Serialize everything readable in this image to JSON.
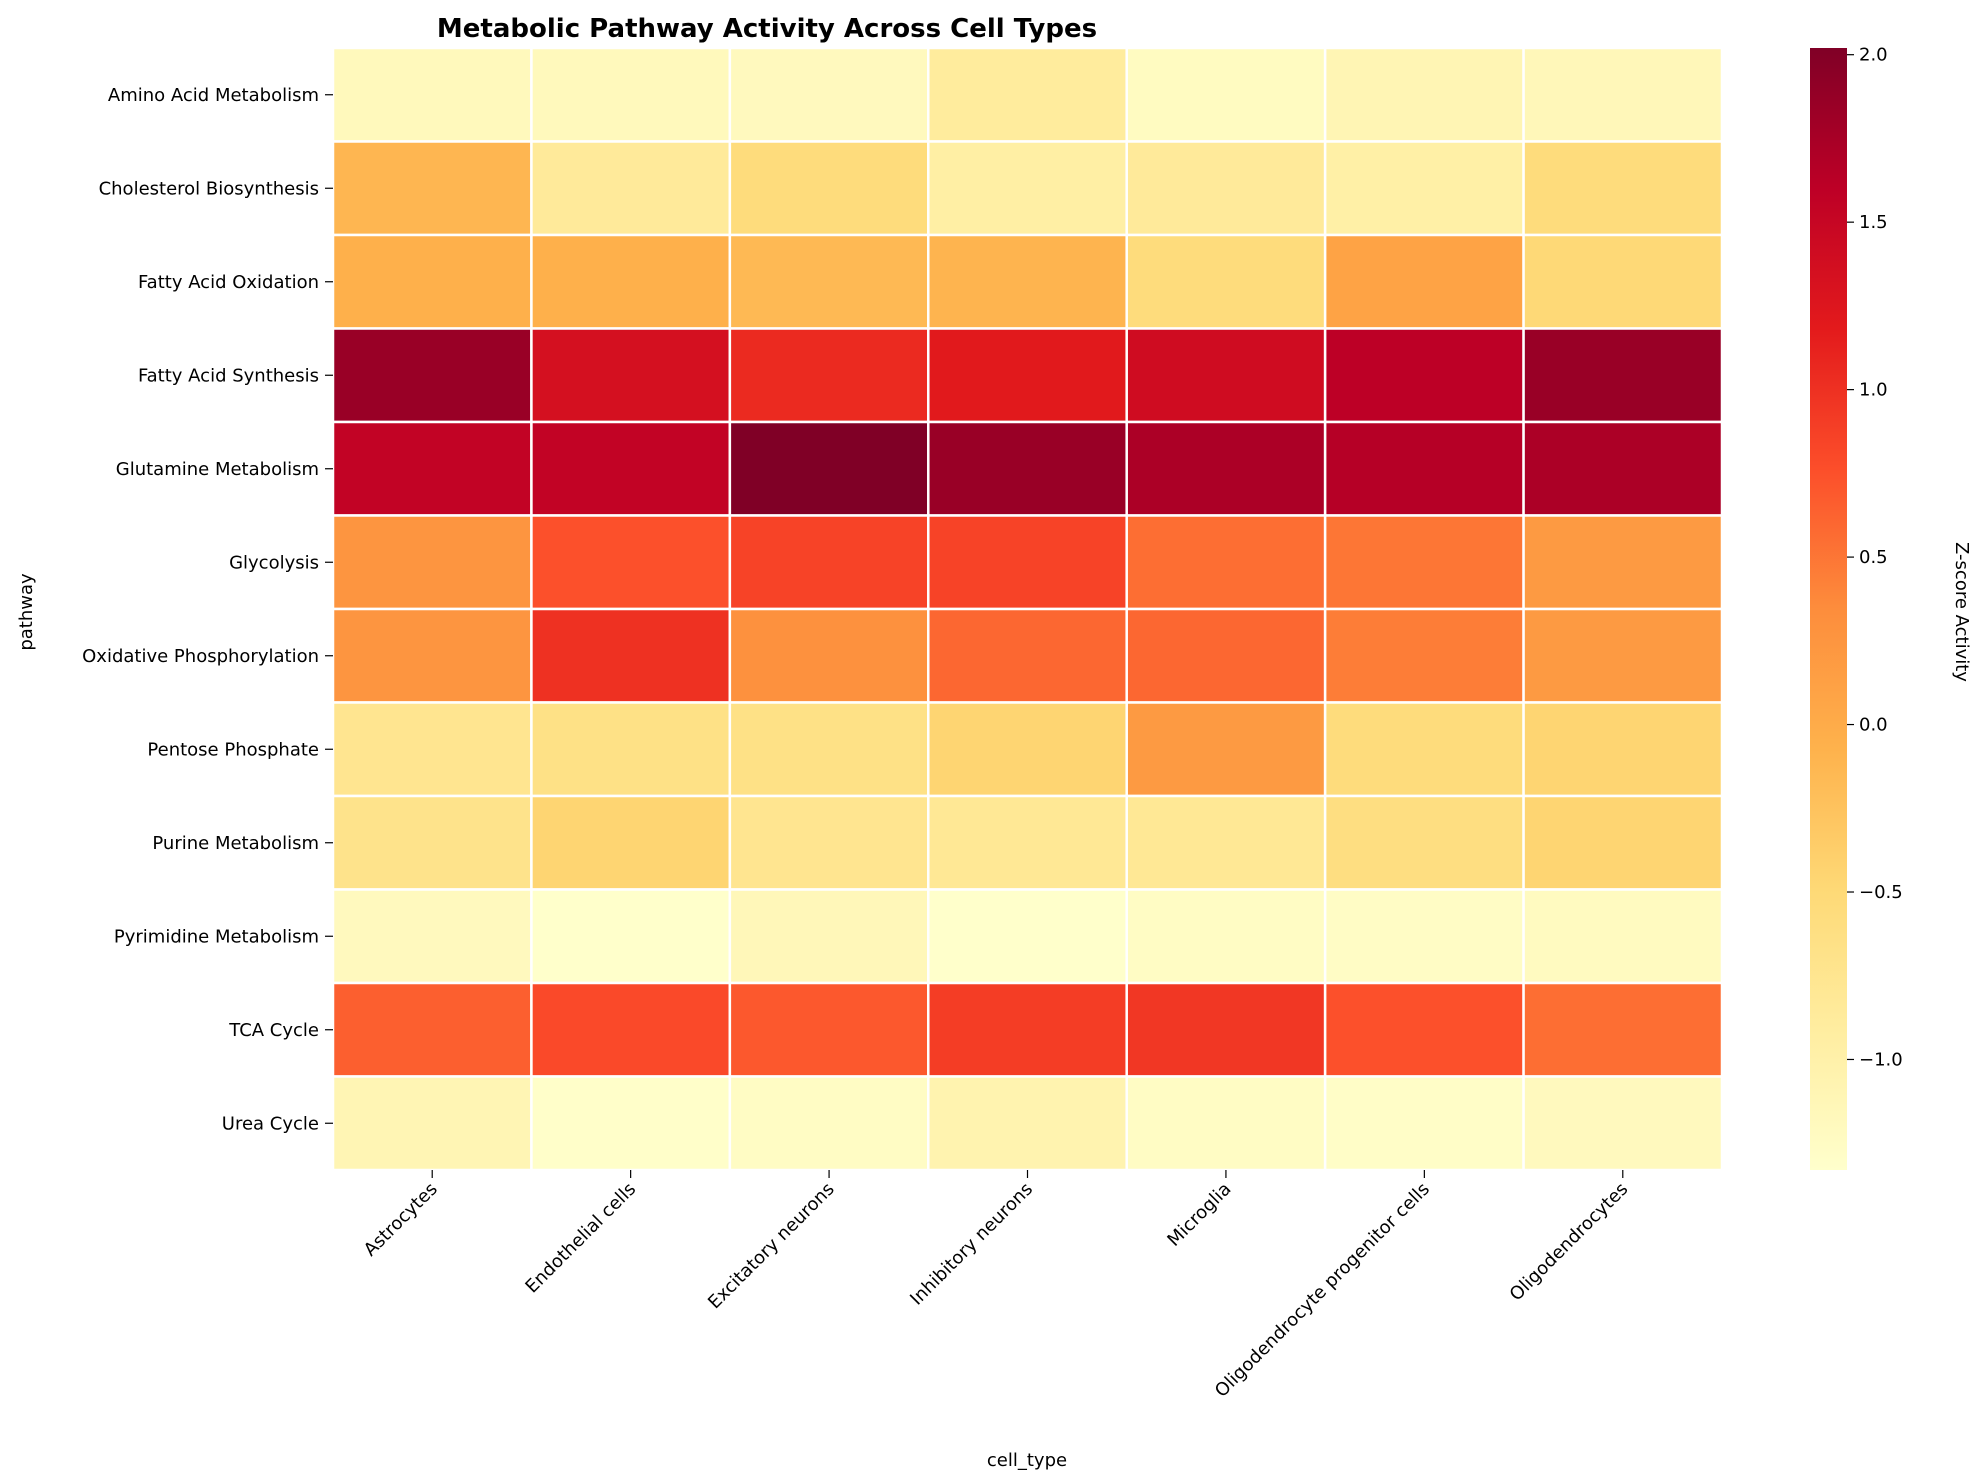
{
  "chart_data": {
    "type": "heatmap",
    "title": "Metabolic Pathway Activity Across Cell Types",
    "xlabel": "cell_type",
    "ylabel": "pathway",
    "colorbar_label": "Z-score Activity",
    "colormap": "YlOrRd",
    "color_range": [
      -1.33,
      2.02
    ],
    "colorbar_ticks": [
      -1.0,
      -0.5,
      0.0,
      0.5,
      1.0,
      1.5,
      2.0
    ],
    "colorbar_tick_labels": [
      "−1.0",
      "−0.5",
      "0.0",
      "0.5",
      "1.0",
      "1.5",
      "2.0"
    ],
    "x_categories": [
      "Astrocytes",
      "Endothelial cells",
      "Excitatory neurons",
      "Inhibitory neurons",
      "Microglia",
      "Oligodendrocyte progenitor cells",
      "Oligodendrocytes"
    ],
    "y_categories": [
      "Amino Acid Metabolism",
      "Cholesterol Biosynthesis",
      "Fatty Acid Oxidation",
      "Fatty Acid Synthesis",
      "Glutamine Metabolism",
      "Glycolysis",
      "Oxidative Phosphorylation",
      "Pentose Phosphate",
      "Purine Metabolism",
      "Pyrimidine Metabolism",
      "TCA Cycle",
      "Urea Cycle"
    ],
    "values": [
      [
        -1.18,
        -1.18,
        -1.2,
        -0.88,
        -1.23,
        -1.1,
        -1.15
      ],
      [
        -0.12,
        -0.85,
        -0.55,
        -0.95,
        -0.85,
        -0.97,
        -0.55
      ],
      [
        -0.05,
        -0.05,
        -0.15,
        -0.1,
        -0.55,
        0.1,
        -0.5
      ],
      [
        1.85,
        1.35,
        1.05,
        1.2,
        1.4,
        1.6,
        1.85
      ],
      [
        1.55,
        1.55,
        2.02,
        1.85,
        1.72,
        1.65,
        1.72
      ],
      [
        0.25,
        0.75,
        0.85,
        0.85,
        0.55,
        0.5,
        0.2
      ],
      [
        0.25,
        1.0,
        0.3,
        0.6,
        0.6,
        0.45,
        0.2
      ],
      [
        -0.75,
        -0.65,
        -0.65,
        -0.45,
        0.2,
        -0.55,
        -0.45
      ],
      [
        -0.7,
        -0.45,
        -0.75,
        -0.8,
        -0.8,
        -0.6,
        -0.45
      ],
      [
        -1.2,
        -1.32,
        -1.15,
        -1.32,
        -1.25,
        -1.26,
        -1.22
      ],
      [
        0.65,
        0.8,
        0.7,
        0.9,
        0.95,
        0.75,
        0.55
      ],
      [
        -1.1,
        -1.3,
        -1.25,
        -1.05,
        -1.25,
        -1.28,
        -1.2
      ]
    ]
  }
}
